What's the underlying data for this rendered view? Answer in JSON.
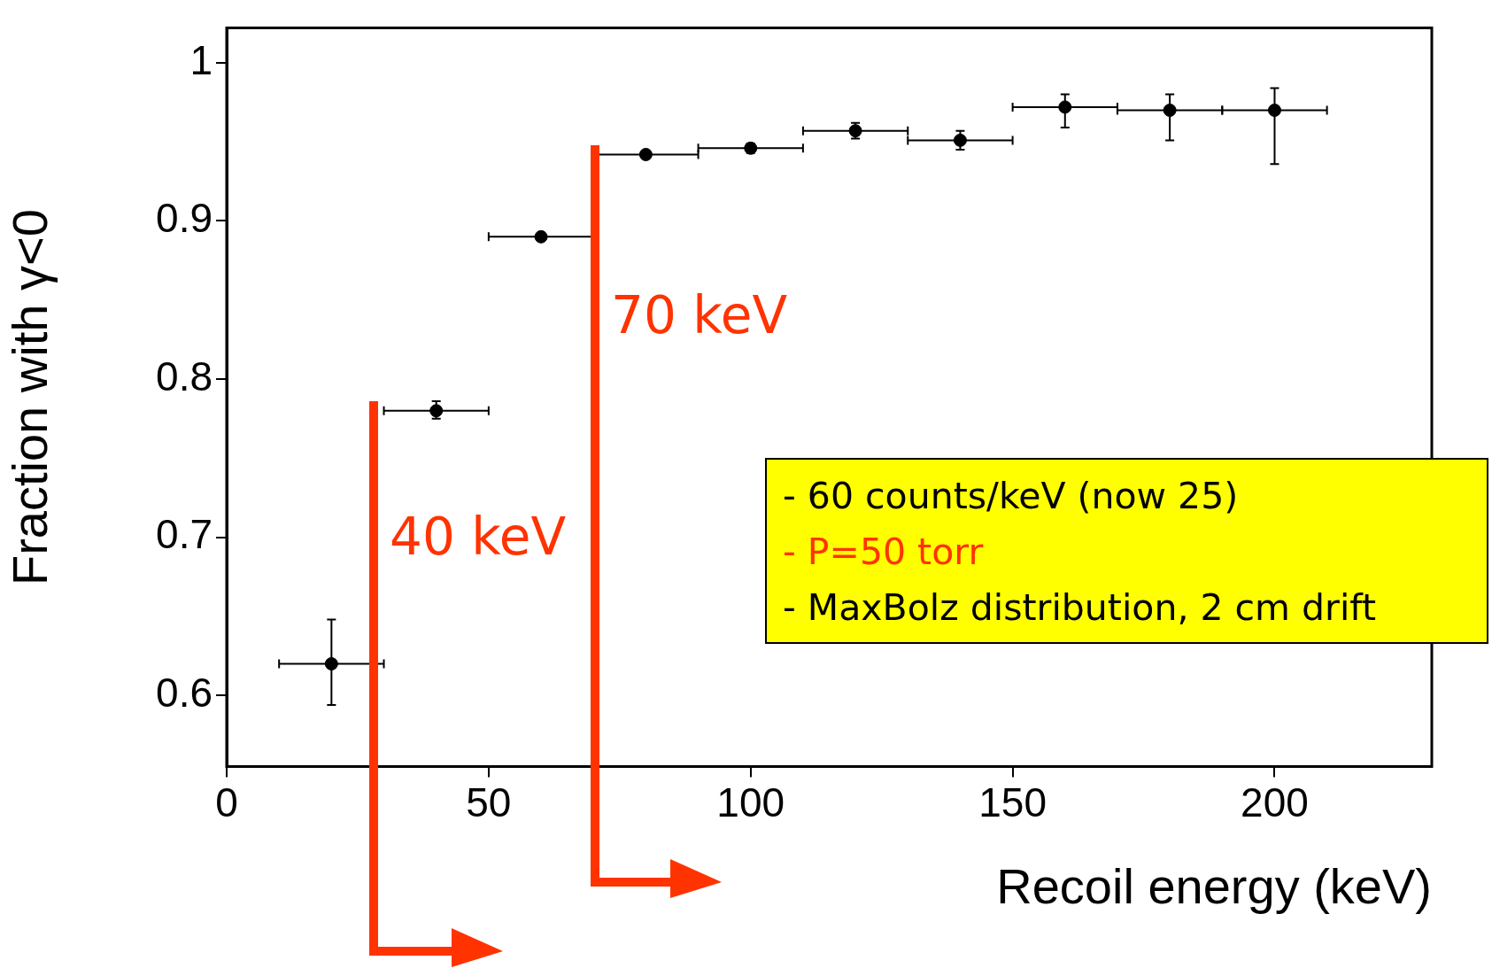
{
  "chart_data": {
    "type": "scatter",
    "xlabel": "Recoil energy (keV)",
    "ylabel": "Fraction with γ<0",
    "x": [
      20,
      40,
      60,
      80,
      100,
      120,
      140,
      160,
      180,
      200
    ],
    "values": [
      0.62,
      0.78,
      0.89,
      0.942,
      0.946,
      0.957,
      0.951,
      0.972,
      0.97,
      0.97
    ],
    "errors": [
      [
        0.594,
        0.648
      ],
      [
        0.775,
        0.786
      ],
      null,
      null,
      [
        0.943,
        0.949
      ],
      [
        0.952,
        0.962
      ],
      [
        0.945,
        0.957
      ],
      [
        0.959,
        0.98
      ],
      [
        0.951,
        0.98
      ],
      [
        0.936,
        0.984
      ]
    ],
    "xerrors": [
      10,
      10,
      10,
      10,
      10,
      10,
      10,
      10,
      10,
      10
    ],
    "color": "#000000",
    "marker": "circle",
    "xlim": [
      0,
      230
    ],
    "ylim": [
      0.555,
      1.022
    ],
    "xticks": [
      0,
      50,
      100,
      150,
      200
    ],
    "yticks": [
      0.6,
      0.7,
      0.8,
      0.9,
      1
    ],
    "annotations": [
      "40 keV",
      "70 keV",
      "- 60 counts/keV (now 25)",
      "- P=50 torr",
      "- MaxBolz distribution, 2 cm drift"
    ]
  }
}
